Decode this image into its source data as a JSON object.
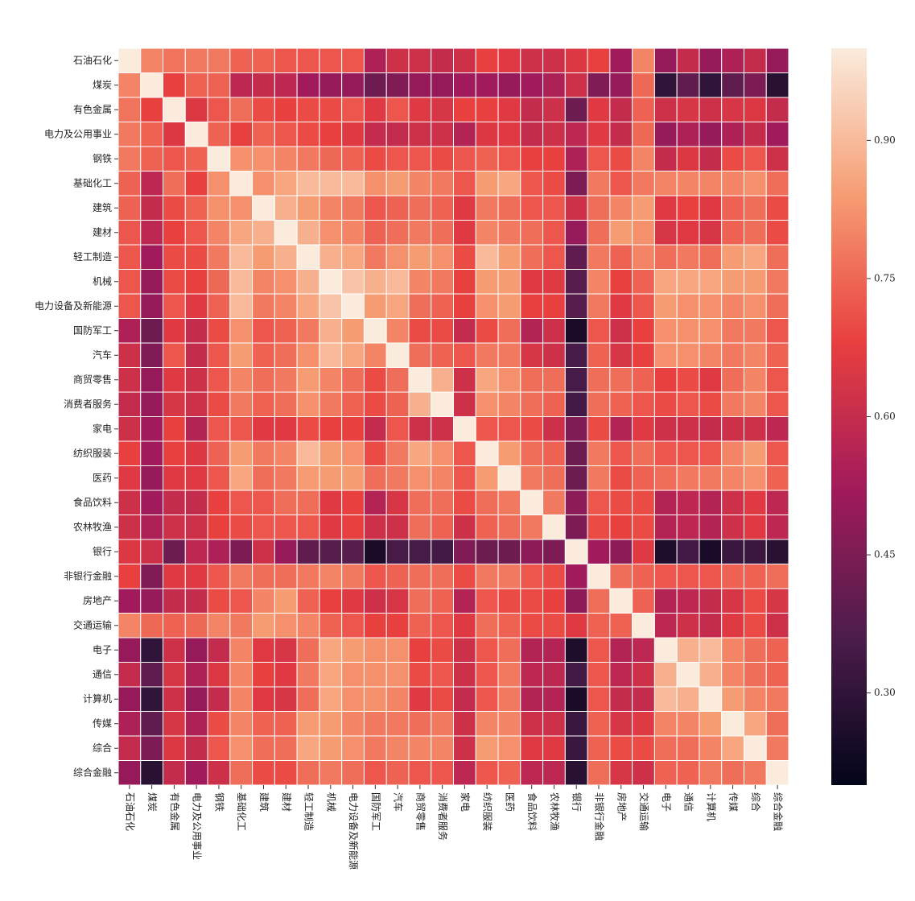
{
  "chart_data": {
    "type": "heatmap",
    "colormap": "rocket",
    "categories": [
      "石油石化",
      "煤炭",
      "有色金属",
      "电力及公用事业",
      "钢铁",
      "基础化工",
      "建筑",
      "建材",
      "轻工制造",
      "机械",
      "电力设备及新能源",
      "国防军工",
      "汽车",
      "商贸零售",
      "消费者服务",
      "家电",
      "纺织服装",
      "医药",
      "食品饮料",
      "农林牧渔",
      "银行",
      "非银行金融",
      "房地产",
      "交通运输",
      "电子",
      "通信",
      "计算机",
      "传媒",
      "综合",
      "综合金融"
    ],
    "values": [
      [
        1,
        0.8,
        0.77,
        0.78,
        0.78,
        0.74,
        0.74,
        0.72,
        0.72,
        0.72,
        0.72,
        0.55,
        0.62,
        0.62,
        0.6,
        0.62,
        0.68,
        0.66,
        0.62,
        0.62,
        0.65,
        0.68,
        0.52,
        0.8,
        0.5,
        0.6,
        0.5,
        0.55,
        0.6,
        0.5
      ],
      [
        0.8,
        1,
        0.68,
        0.74,
        0.74,
        0.58,
        0.6,
        0.58,
        0.52,
        0.5,
        0.5,
        0.42,
        0.46,
        0.5,
        0.5,
        0.52,
        0.52,
        0.5,
        0.52,
        0.55,
        0.62,
        0.46,
        0.5,
        0.75,
        0.3,
        0.4,
        0.3,
        0.4,
        0.45,
        0.28
      ],
      [
        0.77,
        0.68,
        1,
        0.65,
        0.72,
        0.76,
        0.7,
        0.68,
        0.7,
        0.7,
        0.72,
        0.66,
        0.72,
        0.66,
        0.64,
        0.68,
        0.68,
        0.66,
        0.6,
        0.62,
        0.42,
        0.66,
        0.6,
        0.74,
        0.62,
        0.64,
        0.62,
        0.64,
        0.65,
        0.6
      ],
      [
        0.78,
        0.74,
        0.65,
        1,
        0.74,
        0.68,
        0.74,
        0.72,
        0.7,
        0.68,
        0.66,
        0.6,
        0.6,
        0.62,
        0.62,
        0.56,
        0.65,
        0.66,
        0.6,
        0.62,
        0.58,
        0.66,
        0.6,
        0.75,
        0.5,
        0.55,
        0.5,
        0.55,
        0.6,
        0.52
      ],
      [
        0.78,
        0.74,
        0.72,
        0.74,
        1,
        0.82,
        0.82,
        0.8,
        0.78,
        0.75,
        0.74,
        0.7,
        0.72,
        0.72,
        0.7,
        0.72,
        0.74,
        0.72,
        0.68,
        0.68,
        0.55,
        0.72,
        0.7,
        0.8,
        0.6,
        0.65,
        0.6,
        0.7,
        0.72,
        0.62
      ],
      [
        0.74,
        0.58,
        0.76,
        0.68,
        0.82,
        1,
        0.82,
        0.86,
        0.9,
        0.9,
        0.9,
        0.82,
        0.84,
        0.8,
        0.78,
        0.72,
        0.84,
        0.86,
        0.72,
        0.7,
        0.45,
        0.78,
        0.72,
        0.78,
        0.8,
        0.8,
        0.8,
        0.8,
        0.82,
        0.76
      ],
      [
        0.74,
        0.6,
        0.7,
        0.74,
        0.82,
        0.82,
        1,
        0.88,
        0.84,
        0.8,
        0.78,
        0.72,
        0.74,
        0.76,
        0.74,
        0.66,
        0.78,
        0.76,
        0.72,
        0.72,
        0.62,
        0.76,
        0.8,
        0.84,
        0.66,
        0.68,
        0.66,
        0.74,
        0.76,
        0.7
      ],
      [
        0.72,
        0.58,
        0.68,
        0.72,
        0.8,
        0.86,
        0.88,
        1,
        0.88,
        0.82,
        0.8,
        0.74,
        0.76,
        0.78,
        0.76,
        0.66,
        0.8,
        0.78,
        0.76,
        0.72,
        0.5,
        0.76,
        0.84,
        0.82,
        0.64,
        0.66,
        0.64,
        0.74,
        0.76,
        0.7
      ],
      [
        0.72,
        0.52,
        0.7,
        0.7,
        0.78,
        0.9,
        0.84,
        0.88,
        1,
        0.88,
        0.86,
        0.78,
        0.82,
        0.84,
        0.82,
        0.7,
        0.9,
        0.84,
        0.76,
        0.72,
        0.4,
        0.78,
        0.74,
        0.8,
        0.76,
        0.78,
        0.76,
        0.84,
        0.86,
        0.76
      ],
      [
        0.72,
        0.5,
        0.7,
        0.68,
        0.75,
        0.9,
        0.8,
        0.82,
        0.88,
        1,
        0.92,
        0.88,
        0.9,
        0.8,
        0.78,
        0.68,
        0.84,
        0.84,
        0.66,
        0.66,
        0.38,
        0.8,
        0.68,
        0.74,
        0.86,
        0.86,
        0.86,
        0.84,
        0.84,
        0.78
      ],
      [
        0.72,
        0.5,
        0.72,
        0.66,
        0.74,
        0.9,
        0.78,
        0.8,
        0.86,
        0.92,
        1,
        0.84,
        0.86,
        0.76,
        0.74,
        0.68,
        0.82,
        0.84,
        0.68,
        0.68,
        0.38,
        0.78,
        0.66,
        0.72,
        0.84,
        0.82,
        0.82,
        0.8,
        0.82,
        0.76
      ],
      [
        0.55,
        0.42,
        0.66,
        0.6,
        0.7,
        0.82,
        0.72,
        0.74,
        0.78,
        0.88,
        0.84,
        1,
        0.8,
        0.7,
        0.7,
        0.6,
        0.7,
        0.76,
        0.56,
        0.62,
        0.25,
        0.72,
        0.62,
        0.68,
        0.82,
        0.82,
        0.82,
        0.78,
        0.78,
        0.72
      ],
      [
        0.62,
        0.46,
        0.72,
        0.6,
        0.72,
        0.84,
        0.74,
        0.76,
        0.82,
        0.9,
        0.86,
        0.8,
        1,
        0.76,
        0.74,
        0.72,
        0.78,
        0.78,
        0.64,
        0.62,
        0.35,
        0.74,
        0.64,
        0.68,
        0.82,
        0.82,
        0.8,
        0.78,
        0.8,
        0.74
      ],
      [
        0.62,
        0.5,
        0.66,
        0.62,
        0.72,
        0.8,
        0.76,
        0.78,
        0.84,
        0.8,
        0.76,
        0.7,
        0.76,
        1,
        0.88,
        0.62,
        0.86,
        0.82,
        0.76,
        0.76,
        0.35,
        0.76,
        0.76,
        0.74,
        0.68,
        0.7,
        0.66,
        0.76,
        0.8,
        0.72
      ],
      [
        0.6,
        0.5,
        0.64,
        0.62,
        0.7,
        0.78,
        0.74,
        0.76,
        0.82,
        0.78,
        0.74,
        0.7,
        0.74,
        0.88,
        1,
        0.62,
        0.82,
        0.8,
        0.76,
        0.74,
        0.34,
        0.76,
        0.74,
        0.72,
        0.7,
        0.72,
        0.7,
        0.78,
        0.8,
        0.72
      ],
      [
        0.62,
        0.52,
        0.68,
        0.56,
        0.72,
        0.72,
        0.66,
        0.66,
        0.7,
        0.68,
        0.68,
        0.6,
        0.72,
        0.62,
        0.62,
        1,
        0.72,
        0.72,
        0.7,
        0.62,
        0.46,
        0.7,
        0.56,
        0.66,
        0.62,
        0.62,
        0.6,
        0.62,
        0.62,
        0.58
      ],
      [
        0.68,
        0.52,
        0.68,
        0.65,
        0.74,
        0.84,
        0.78,
        0.8,
        0.9,
        0.84,
        0.82,
        0.7,
        0.78,
        0.86,
        0.82,
        0.72,
        1,
        0.84,
        0.76,
        0.74,
        0.42,
        0.78,
        0.72,
        0.76,
        0.72,
        0.72,
        0.72,
        0.8,
        0.84,
        0.72
      ],
      [
        0.66,
        0.5,
        0.66,
        0.66,
        0.72,
        0.86,
        0.76,
        0.78,
        0.84,
        0.84,
        0.84,
        0.76,
        0.78,
        0.82,
        0.8,
        0.72,
        0.84,
        1,
        0.78,
        0.76,
        0.42,
        0.78,
        0.7,
        0.74,
        0.76,
        0.78,
        0.78,
        0.8,
        0.82,
        0.74
      ],
      [
        0.62,
        0.52,
        0.6,
        0.6,
        0.68,
        0.72,
        0.72,
        0.76,
        0.76,
        0.66,
        0.68,
        0.56,
        0.64,
        0.76,
        0.76,
        0.7,
        0.76,
        0.78,
        1,
        0.78,
        0.48,
        0.72,
        0.7,
        0.7,
        0.56,
        0.58,
        0.56,
        0.62,
        0.66,
        0.58
      ],
      [
        0.62,
        0.55,
        0.62,
        0.62,
        0.68,
        0.7,
        0.72,
        0.72,
        0.72,
        0.66,
        0.68,
        0.62,
        0.62,
        0.76,
        0.74,
        0.62,
        0.74,
        0.76,
        0.78,
        1,
        0.45,
        0.7,
        0.68,
        0.7,
        0.56,
        0.58,
        0.56,
        0.62,
        0.66,
        0.58
      ],
      [
        0.65,
        0.62,
        0.42,
        0.58,
        0.55,
        0.45,
        0.62,
        0.5,
        0.4,
        0.38,
        0.38,
        0.25,
        0.35,
        0.35,
        0.34,
        0.46,
        0.42,
        0.42,
        0.48,
        0.45,
        1,
        0.52,
        0.48,
        0.66,
        0.26,
        0.34,
        0.25,
        0.32,
        0.32,
        0.28
      ],
      [
        0.68,
        0.46,
        0.66,
        0.66,
        0.72,
        0.78,
        0.76,
        0.76,
        0.78,
        0.8,
        0.78,
        0.72,
        0.74,
        0.76,
        0.76,
        0.7,
        0.78,
        0.78,
        0.72,
        0.7,
        0.52,
        1,
        0.76,
        0.74,
        0.72,
        0.72,
        0.72,
        0.74,
        0.74,
        0.76
      ],
      [
        0.52,
        0.5,
        0.6,
        0.6,
        0.7,
        0.72,
        0.8,
        0.84,
        0.74,
        0.68,
        0.66,
        0.62,
        0.64,
        0.76,
        0.74,
        0.56,
        0.72,
        0.7,
        0.7,
        0.68,
        0.48,
        0.76,
        1,
        0.74,
        0.56,
        0.58,
        0.6,
        0.64,
        0.7,
        0.64
      ],
      [
        0.8,
        0.75,
        0.74,
        0.75,
        0.8,
        0.78,
        0.84,
        0.82,
        0.8,
        0.74,
        0.72,
        0.68,
        0.68,
        0.74,
        0.72,
        0.66,
        0.76,
        0.74,
        0.7,
        0.7,
        0.66,
        0.74,
        0.74,
        1,
        0.58,
        0.62,
        0.6,
        0.66,
        0.7,
        0.62
      ],
      [
        0.5,
        0.3,
        0.62,
        0.5,
        0.6,
        0.8,
        0.66,
        0.64,
        0.76,
        0.86,
        0.84,
        0.82,
        0.82,
        0.68,
        0.7,
        0.62,
        0.72,
        0.76,
        0.56,
        0.56,
        0.26,
        0.72,
        0.56,
        0.58,
        1,
        0.88,
        0.9,
        0.8,
        0.76,
        0.74
      ],
      [
        0.6,
        0.4,
        0.64,
        0.55,
        0.65,
        0.8,
        0.68,
        0.66,
        0.78,
        0.86,
        0.82,
        0.82,
        0.82,
        0.7,
        0.72,
        0.62,
        0.72,
        0.78,
        0.58,
        0.58,
        0.34,
        0.72,
        0.58,
        0.62,
        0.88,
        1,
        0.88,
        0.8,
        0.76,
        0.74
      ],
      [
        0.5,
        0.3,
        0.62,
        0.5,
        0.6,
        0.8,
        0.66,
        0.64,
        0.76,
        0.86,
        0.82,
        0.82,
        0.8,
        0.66,
        0.7,
        0.6,
        0.72,
        0.78,
        0.56,
        0.56,
        0.25,
        0.72,
        0.6,
        0.6,
        0.9,
        0.88,
        1,
        0.84,
        0.8,
        0.78
      ],
      [
        0.55,
        0.4,
        0.64,
        0.55,
        0.7,
        0.8,
        0.74,
        0.74,
        0.84,
        0.84,
        0.8,
        0.78,
        0.78,
        0.76,
        0.78,
        0.62,
        0.8,
        0.8,
        0.62,
        0.62,
        0.32,
        0.74,
        0.64,
        0.66,
        0.8,
        0.8,
        0.84,
        1,
        0.86,
        0.76
      ],
      [
        0.6,
        0.45,
        0.65,
        0.6,
        0.72,
        0.82,
        0.76,
        0.76,
        0.86,
        0.84,
        0.82,
        0.78,
        0.8,
        0.8,
        0.8,
        0.62,
        0.84,
        0.82,
        0.66,
        0.66,
        0.32,
        0.74,
        0.7,
        0.7,
        0.76,
        0.76,
        0.8,
        0.86,
        1,
        0.78
      ],
      [
        0.5,
        0.28,
        0.6,
        0.52,
        0.62,
        0.76,
        0.7,
        0.7,
        0.76,
        0.78,
        0.76,
        0.72,
        0.74,
        0.72,
        0.72,
        0.58,
        0.72,
        0.74,
        0.58,
        0.58,
        0.28,
        0.76,
        0.64,
        0.62,
        0.74,
        0.74,
        0.78,
        0.76,
        0.78,
        1
      ]
    ],
    "clim": [
      0.2,
      1.0
    ],
    "cticks": [
      {
        "value": 0.3,
        "label": "0.30"
      },
      0.45,
      {
        "value": 0.6,
        "label": "0.60"
      },
      0.75,
      {
        "value": 0.9,
        "label": "0.90"
      }
    ]
  }
}
